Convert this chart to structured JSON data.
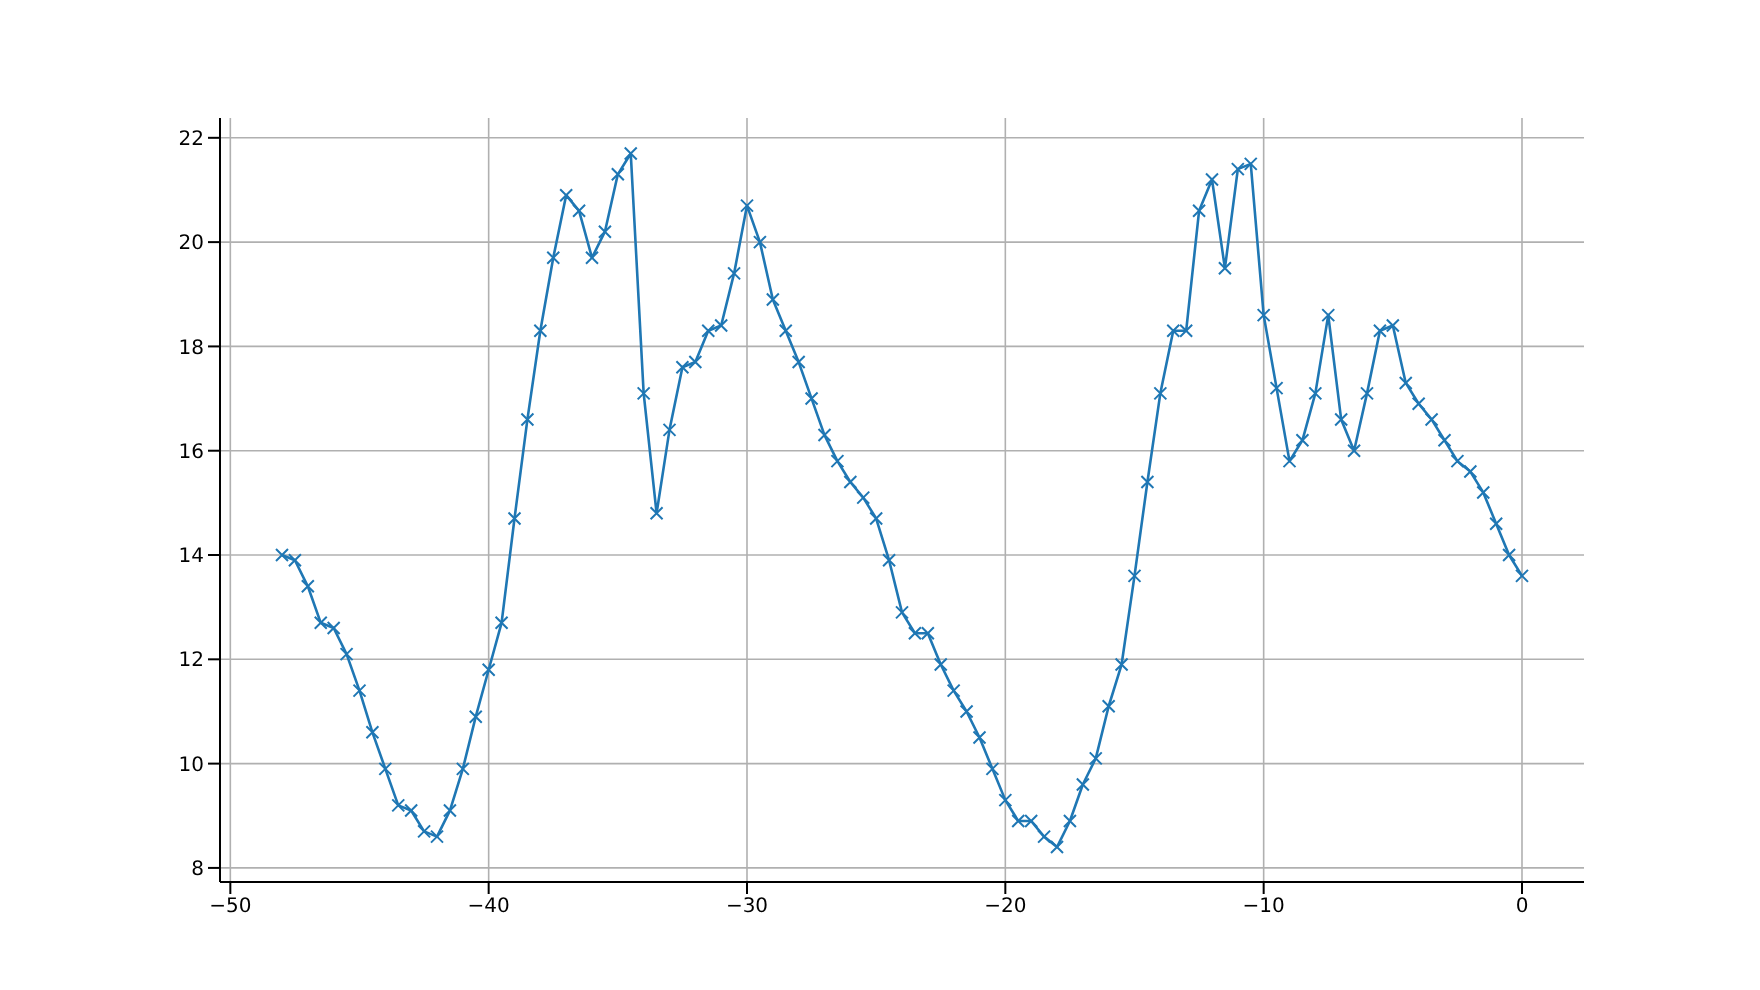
{
  "chart_data": {
    "type": "line",
    "x": [
      -48,
      -47.5,
      -47,
      -46.5,
      -46,
      -45.5,
      -45,
      -44.5,
      -44,
      -43.5,
      -43,
      -42.5,
      -42,
      -41.5,
      -41,
      -40.5,
      -40,
      -39.5,
      -39,
      -38.5,
      -38,
      -37.5,
      -37,
      -36.5,
      -36,
      -35.5,
      -35,
      -34.5,
      -34,
      -33.5,
      -33,
      -32.5,
      -32,
      -31.5,
      -31,
      -30.5,
      -30,
      -29.5,
      -29,
      -28.5,
      -28,
      -27.5,
      -27,
      -26.5,
      -26,
      -25.5,
      -25,
      -24.5,
      -24,
      -23.5,
      -23,
      -22.5,
      -22,
      -21.5,
      -21,
      -20.5,
      -20,
      -19.5,
      -19,
      -18.5,
      -18,
      -17.5,
      -17,
      -16.5,
      -16,
      -15.5,
      -15,
      -14.5,
      -14,
      -13.5,
      -13,
      -12.5,
      -12,
      -11.5,
      -11,
      -10.5,
      -10,
      -9.5,
      -9,
      -8.5,
      -8,
      -7.5,
      -7,
      -6.5,
      -6,
      -5.5,
      -5,
      -4.5,
      -4,
      -3.5,
      -3,
      -2.5,
      -2,
      -1.5,
      -1,
      -0.5,
      0
    ],
    "series": [
      {
        "color": "#1f77b4",
        "values": [
          14.0,
          13.9,
          13.4,
          12.7,
          12.6,
          12.1,
          11.4,
          10.6,
          9.9,
          9.2,
          9.1,
          8.7,
          8.6,
          9.1,
          9.9,
          10.9,
          11.8,
          12.7,
          14.7,
          16.6,
          18.3,
          19.7,
          20.9,
          20.6,
          19.7,
          20.2,
          21.3,
          21.7,
          17.1,
          14.8,
          16.4,
          17.6,
          17.7,
          18.3,
          18.4,
          19.4,
          20.7,
          20.0,
          18.9,
          18.3,
          17.7,
          17.0,
          16.3,
          15.8,
          15.4,
          15.1,
          14.7,
          13.9,
          12.9,
          12.5,
          12.5,
          11.9,
          11.4,
          11.0,
          10.5,
          9.9,
          9.3,
          8.9,
          8.9,
          8.6,
          8.4,
          8.9,
          9.6,
          10.1,
          11.1,
          11.9,
          13.6,
          15.4,
          17.1,
          18.3,
          18.3,
          20.6,
          21.2,
          19.5,
          21.4,
          21.5,
          18.6,
          17.2,
          15.8,
          16.2,
          17.1,
          18.6,
          16.6,
          16.0,
          17.1,
          18.3,
          18.4,
          17.3,
          16.9,
          16.6,
          16.2,
          15.8,
          15.6,
          15.2,
          14.6,
          14.0,
          13.6
        ]
      }
    ],
    "xlim": [
      -50.4,
      2.4
    ],
    "xticks": [
      -50,
      -40,
      -30,
      -20,
      -10,
      0
    ],
    "ylim": [
      7.73,
      22.38
    ],
    "yticks": [
      8,
      10,
      12,
      14,
      16,
      18,
      20,
      22
    ],
    "grid": true,
    "marker": "cross",
    "line_style": "solid"
  }
}
